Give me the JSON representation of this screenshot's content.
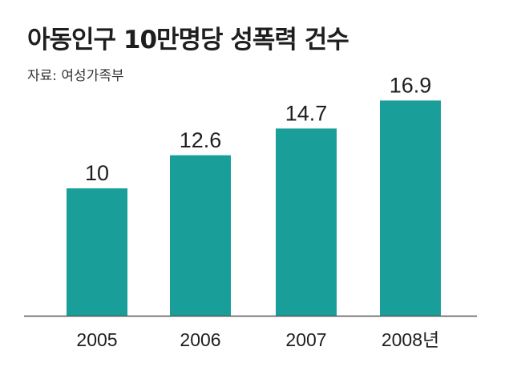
{
  "chart_data": {
    "type": "bar",
    "title": "아동인구 10만명당 성폭력 건수",
    "source": "자료: 여성가족부",
    "categories": [
      "2005",
      "2006",
      "2007",
      "2008년"
    ],
    "values": [
      10,
      12.6,
      14.7,
      16.9
    ],
    "value_labels": [
      "10",
      "12.6",
      "14.7",
      "16.9"
    ],
    "xlabel": "",
    "ylabel": "",
    "ylim": [
      0,
      18.5
    ],
    "grid": false,
    "legend": "none",
    "bar_color": "#1a9e9a",
    "axis_color": "#555555"
  }
}
